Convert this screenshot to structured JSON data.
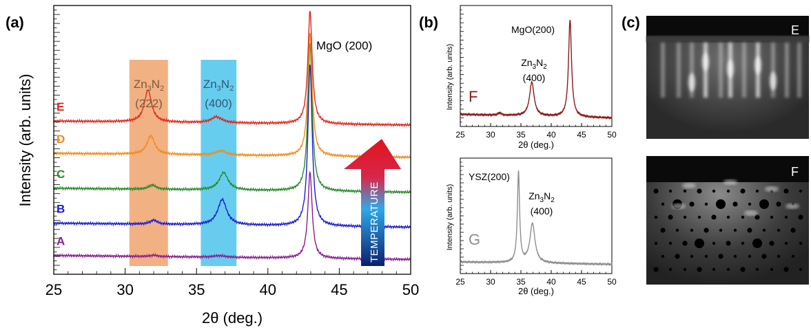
{
  "panels": {
    "a": "(a)",
    "b": "(b)",
    "c": "(c)"
  },
  "chart_data": [
    {
      "id": "a",
      "type": "line",
      "xlabel": "2θ (deg.)",
      "ylabel": "Intensity (arb. units)",
      "xlim": [
        25,
        50
      ],
      "xticks": [
        25,
        30,
        35,
        40,
        45,
        50
      ],
      "ylim": [
        0,
        100
      ],
      "annotations": {
        "peak_mgo": "MgO (200)",
        "band_222_formula": [
          "Zn",
          "3",
          "N",
          "2"
        ],
        "band_222_hkl": "(222)",
        "band_400_formula": [
          "Zn",
          "3",
          "N",
          "2"
        ],
        "band_400_hkl": "(400)",
        "arrow": "TEMPERATURE"
      },
      "bands": [
        {
          "name": "Zn3N2 (222)",
          "x0": 30.3,
          "x1": 33.0,
          "color": "#f2b183"
        },
        {
          "name": "Zn3N2 (400)",
          "x0": 35.3,
          "x1": 37.8,
          "color": "#67cdef"
        }
      ],
      "series": [
        {
          "name": "A",
          "color": "#8a1d8f",
          "base": 7,
          "tilt": -1.5,
          "peaks": [
            [
              32.0,
              0.3,
              0.5
            ],
            [
              36.6,
              0.5,
              0.6
            ],
            [
              42.95,
              0.18,
              32
            ]
          ]
        },
        {
          "name": "B",
          "color": "#1c1cd6",
          "base": 19,
          "tilt": -1.5,
          "peaks": [
            [
              32.0,
              0.3,
              1.5
            ],
            [
              36.8,
              0.38,
              9.5
            ],
            [
              42.95,
              0.18,
              60
            ]
          ]
        },
        {
          "name": "C",
          "color": "#2a8a2a",
          "base": 32,
          "tilt": -1.5,
          "peaks": [
            [
              31.9,
              0.3,
              1.6
            ],
            [
              36.9,
              0.38,
              6.5
            ],
            [
              42.95,
              0.18,
              55
            ]
          ]
        },
        {
          "name": "D",
          "color": "#f08c1c",
          "base": 45,
          "tilt": -1.5,
          "peaks": [
            [
              31.8,
              0.32,
              7
            ],
            [
              36.7,
              0.45,
              1.6
            ],
            [
              42.95,
              0.18,
              46
            ]
          ]
        },
        {
          "name": "E",
          "color": "#e3261c",
          "base": 57,
          "tilt": -1.5,
          "peaks": [
            [
              31.6,
              0.3,
              12
            ],
            [
              36.4,
              0.45,
              2.2
            ],
            [
              42.95,
              0.18,
              42
            ]
          ]
        }
      ]
    },
    {
      "id": "b_top",
      "type": "line",
      "xlabel": "2θ (deg.)",
      "ylabel": "Intensity (arb. units)",
      "xlim": [
        25,
        50
      ],
      "xticks": [
        25,
        30,
        35,
        40,
        45,
        50
      ],
      "ylim": [
        0,
        100
      ],
      "annotations": {
        "peak_mgo": "MgO(200)",
        "peak_zn_formula": [
          "Zn",
          "3",
          "N",
          "2"
        ],
        "peak_zn_hkl": "(400)"
      },
      "series": [
        {
          "name": "F",
          "color": "#8b1a1a",
          "base": 10,
          "tilt": -3,
          "peaks": [
            [
              31.5,
              0.3,
              2
            ],
            [
              36.8,
              0.45,
              28
            ],
            [
              43.1,
              0.3,
              80
            ]
          ]
        }
      ]
    },
    {
      "id": "b_bottom",
      "type": "line",
      "xlabel": "2θ (deg.)",
      "ylabel": "Intensity (arb. units)",
      "xlim": [
        25,
        50
      ],
      "xticks": [
        25,
        30,
        35,
        40,
        45,
        50
      ],
      "ylim": [
        0,
        100
      ],
      "annotations": {
        "peak_ysz": "YSZ(200)",
        "peak_zn_formula": [
          "Zn",
          "3",
          "N",
          "2"
        ],
        "peak_zn_hkl": "(400)"
      },
      "series": [
        {
          "name": "G",
          "color": "#8e8e8e",
          "base": 10,
          "tilt": -2,
          "peaks": [
            [
              34.6,
              0.22,
              78
            ],
            [
              36.9,
              0.5,
              34
            ]
          ]
        }
      ]
    }
  ],
  "rheed": [
    {
      "label": "E",
      "pattern": "streaky"
    },
    {
      "label": "F",
      "pattern": "spotty"
    }
  ]
}
